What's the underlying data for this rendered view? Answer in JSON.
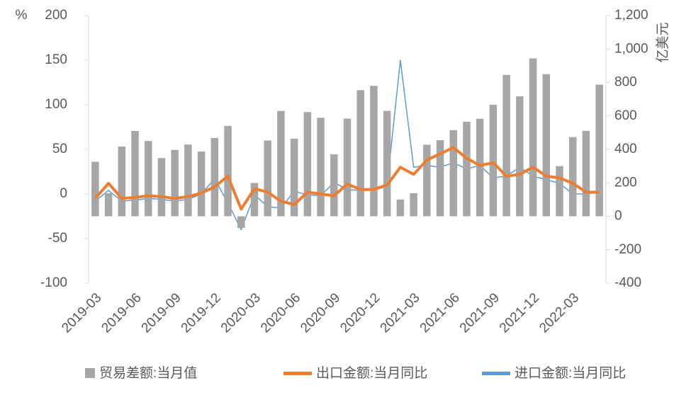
{
  "chart_data": {
    "type": "bar_line",
    "ylabel": "%",
    "y2label": "亿美元",
    "categories": [
      "2019-03",
      null,
      null,
      "2019-06",
      null,
      null,
      "2019-09",
      null,
      null,
      "2019-12",
      null,
      null,
      "2020-03",
      null,
      null,
      "2020-06",
      null,
      null,
      "2020-09",
      null,
      null,
      "2020-12",
      null,
      null,
      "2021-03",
      null,
      null,
      "2021-06",
      null,
      null,
      "2021-09",
      null,
      null,
      "2021-12",
      null,
      null,
      "2022-03",
      null,
      null
    ],
    "series": [
      {
        "name": "贸易差额:当月值",
        "type": "bar",
        "axis": "y2",
        "color": "#a6a6a6",
        "values": [
          326,
          138,
          417,
          510,
          450,
          348,
          397,
          429,
          387,
          468,
          540,
          -70,
          199,
          453,
          630,
          464,
          623,
          589,
          370,
          584,
          754,
          780,
          630,
          100,
          138,
          428,
          455,
          515,
          565,
          583,
          667,
          845,
          717,
          944,
          850,
          300,
          473,
          511,
          787
        ]
      },
      {
        "name": "出口金额:当月同比",
        "type": "line",
        "axis": "y",
        "color": "#ed7d31",
        "values": [
          -5,
          12,
          -5,
          -4,
          -2,
          -3,
          -5,
          -3,
          1,
          8,
          20,
          -17,
          6,
          2,
          -8,
          -12,
          2,
          0,
          -2,
          11,
          5,
          5,
          10,
          30,
          22,
          38,
          45,
          52,
          40,
          32,
          35,
          20,
          22,
          30,
          20,
          18,
          12,
          2,
          2
        ]
      },
      {
        "name": "进口金额:当月同比",
        "type": "line",
        "axis": "y",
        "color": "#5b9bd5",
        "values": [
          -8,
          4,
          -8,
          -7,
          -5,
          -6,
          -8,
          -6,
          0,
          17,
          -10,
          -40,
          -1,
          -14,
          -16,
          3,
          -1,
          -2,
          13,
          5,
          4,
          7,
          10,
          150,
          30,
          32,
          30,
          35,
          28,
          32,
          18,
          20,
          30,
          20,
          16,
          12,
          0,
          0,
          2
        ]
      }
    ],
    "ylim": [
      -100,
      200
    ],
    "yticks": [
      -100,
      -50,
      0,
      50,
      100,
      150,
      200
    ],
    "y2lim": [
      -400,
      1200
    ],
    "y2ticks": [
      -400,
      -200,
      0,
      200,
      400,
      600,
      800,
      {
        "value": 1000,
        "label": "1,000"
      },
      {
        "value": 1200,
        "label": "1,200"
      }
    ],
    "legend": "bottom"
  }
}
